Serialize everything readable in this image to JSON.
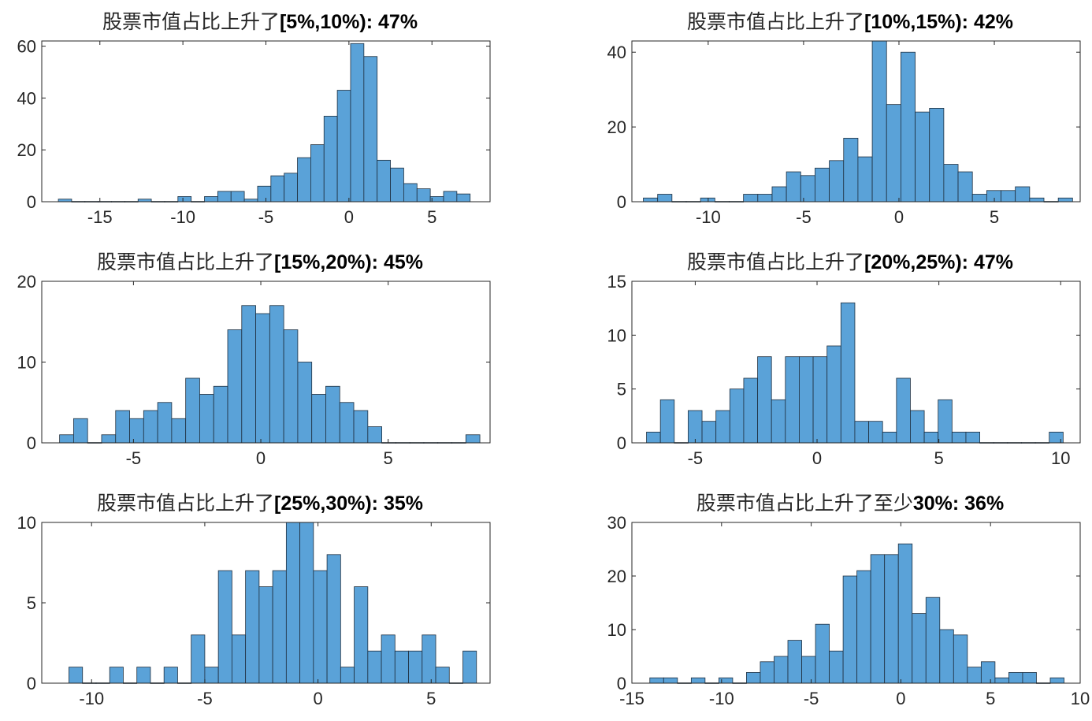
{
  "colors": {
    "bar_fill": "#5aa2d8",
    "bar_edge": "#1f2f3f",
    "axis": "#262626"
  },
  "chart_data": [
    {
      "type": "bar",
      "title": "股票市值占比上升了",
      "title_range": "[5%,10%): 47%",
      "x": [
        -17.25,
        -16.25,
        -15.25,
        -14.25,
        -13.25,
        -12.25,
        -11.25,
        -10.25,
        -9.25,
        -8.25,
        -7.25,
        -6.25,
        -5.25,
        -4.25,
        -3.25,
        -2.25,
        -1.25,
        -0.25,
        0.25,
        1.25,
        2.25,
        3.25,
        4.25,
        5.25,
        6.25,
        7.25
      ],
      "bin_edges_note": "",
      "bins": [
        [
          -17.5,
          -16.7,
          1
        ],
        [
          -16.7,
          -15.9,
          0
        ],
        [
          -15.9,
          -15.1,
          0
        ],
        [
          -15.1,
          -14.3,
          0
        ],
        [
          -14.3,
          -13.5,
          0
        ],
        [
          -13.5,
          -12.7,
          0
        ],
        [
          -12.7,
          -11.9,
          1
        ],
        [
          -11.9,
          -11.1,
          0
        ],
        [
          -11.1,
          -10.3,
          0
        ],
        [
          -10.3,
          -9.5,
          2
        ],
        [
          -9.5,
          -8.7,
          0
        ],
        [
          -8.7,
          -7.9,
          2
        ],
        [
          -7.9,
          -7.1,
          4
        ],
        [
          -7.1,
          -6.3,
          4
        ],
        [
          -6.3,
          -5.5,
          1
        ],
        [
          -5.5,
          -4.7,
          6
        ],
        [
          -4.7,
          -3.9,
          10
        ],
        [
          -3.9,
          -3.1,
          11
        ],
        [
          -3.1,
          -2.3,
          17
        ],
        [
          -2.3,
          -1.5,
          22
        ],
        [
          -1.5,
          -0.7,
          33
        ],
        [
          -0.7,
          0.1,
          43
        ],
        [
          0.1,
          0.9,
          61
        ],
        [
          0.9,
          1.7,
          56
        ],
        [
          1.7,
          2.5,
          16
        ],
        [
          2.5,
          3.3,
          13
        ],
        [
          3.3,
          4.1,
          7
        ],
        [
          4.1,
          4.9,
          5
        ],
        [
          4.9,
          5.7,
          2
        ],
        [
          5.7,
          6.5,
          4
        ],
        [
          6.5,
          7.3,
          3
        ]
      ],
      "xlim": [
        -18.5,
        8.5
      ],
      "ylim": [
        0,
        62
      ],
      "xticks": [
        -15,
        -10,
        -5,
        0,
        5
      ],
      "yticks": [
        0,
        20,
        40,
        60
      ],
      "xtick_labels": [
        "-15",
        "-10",
        "-5",
        "0",
        "5"
      ],
      "ytick_labels": [
        "0",
        "20",
        "40",
        "60"
      ],
      "xlabel": "",
      "ylabel": ""
    },
    {
      "type": "bar",
      "title": "股票市值占比上升了",
      "title_range": "[10%,15%): 42%",
      "bins": [
        [
          -13.4,
          -12.65,
          1
        ],
        [
          -12.65,
          -11.9,
          2
        ],
        [
          -11.9,
          -11.15,
          0
        ],
        [
          -11.15,
          -10.4,
          0
        ],
        [
          -10.4,
          -9.65,
          1
        ],
        [
          -9.65,
          -8.9,
          0
        ],
        [
          -8.9,
          -8.15,
          0
        ],
        [
          -8.15,
          -7.4,
          2
        ],
        [
          -7.4,
          -6.65,
          2
        ],
        [
          -6.65,
          -5.9,
          4
        ],
        [
          -5.9,
          -5.15,
          8
        ],
        [
          -5.15,
          -4.4,
          7
        ],
        [
          -4.4,
          -3.65,
          9
        ],
        [
          -3.65,
          -2.9,
          11
        ],
        [
          -2.9,
          -2.15,
          17
        ],
        [
          -2.15,
          -1.4,
          12
        ],
        [
          -1.4,
          -0.65,
          43
        ],
        [
          -0.65,
          0.1,
          26
        ],
        [
          0.1,
          0.85,
          40
        ],
        [
          0.85,
          1.6,
          24
        ],
        [
          1.6,
          2.35,
          25
        ],
        [
          2.35,
          3.1,
          10
        ],
        [
          3.1,
          3.85,
          8
        ],
        [
          3.85,
          4.6,
          2
        ],
        [
          4.6,
          5.35,
          3
        ],
        [
          5.35,
          6.1,
          3
        ],
        [
          6.1,
          6.85,
          4
        ],
        [
          6.85,
          7.6,
          1
        ],
        [
          7.6,
          8.35,
          0
        ],
        [
          8.35,
          9.1,
          1
        ]
      ],
      "xlim": [
        -14.0,
        9.5
      ],
      "ylim": [
        0,
        43
      ],
      "xticks": [
        -10,
        -5,
        0,
        5
      ],
      "yticks": [
        0,
        20,
        40
      ],
      "xtick_labels": [
        "-10",
        "-5",
        "0",
        "5"
      ],
      "ytick_labels": [
        "0",
        "20",
        "40"
      ],
      "xlabel": "",
      "ylabel": ""
    },
    {
      "type": "bar",
      "title": "股票市值占比上升了",
      "title_range": "[15%,20%): 45%",
      "bins": [
        [
          -7.9,
          -7.35,
          1
        ],
        [
          -7.35,
          -6.8,
          3
        ],
        [
          -6.8,
          -6.25,
          0
        ],
        [
          -6.25,
          -5.7,
          1
        ],
        [
          -5.7,
          -5.15,
          4
        ],
        [
          -5.15,
          -4.6,
          3
        ],
        [
          -4.6,
          -4.05,
          4
        ],
        [
          -4.05,
          -3.5,
          5
        ],
        [
          -3.5,
          -2.95,
          3
        ],
        [
          -2.95,
          -2.4,
          8
        ],
        [
          -2.4,
          -1.85,
          6
        ],
        [
          -1.85,
          -1.3,
          7
        ],
        [
          -1.3,
          -0.75,
          14
        ],
        [
          -0.75,
          -0.2,
          17
        ],
        [
          -0.2,
          0.35,
          16
        ],
        [
          0.35,
          0.9,
          17
        ],
        [
          0.9,
          1.45,
          14
        ],
        [
          1.45,
          2.0,
          10
        ],
        [
          2.0,
          2.55,
          6
        ],
        [
          2.55,
          3.1,
          7
        ],
        [
          3.1,
          3.65,
          5
        ],
        [
          3.65,
          4.2,
          4
        ],
        [
          4.2,
          4.75,
          2
        ],
        [
          4.75,
          5.3,
          0
        ],
        [
          5.3,
          5.85,
          0
        ],
        [
          5.85,
          6.4,
          0
        ],
        [
          6.4,
          6.95,
          0
        ],
        [
          6.95,
          7.5,
          0
        ],
        [
          7.5,
          8.05,
          0
        ],
        [
          8.05,
          8.6,
          1
        ]
      ],
      "xlim": [
        -8.6,
        9.0
      ],
      "ylim": [
        0,
        20
      ],
      "xticks": [
        -5,
        0,
        5
      ],
      "yticks": [
        0,
        10,
        20
      ],
      "xtick_labels": [
        "-5",
        "0",
        "5"
      ],
      "ytick_labels": [
        "0",
        "10",
        "20"
      ],
      "xlabel": "",
      "ylabel": ""
    },
    {
      "type": "bar",
      "title": "股票市值占比上升了",
      "title_range": "[20%,25%): 47%",
      "bins": [
        [
          -7.0,
          -6.43,
          1
        ],
        [
          -6.43,
          -5.86,
          4
        ],
        [
          -5.86,
          -5.29,
          0
        ],
        [
          -5.29,
          -4.72,
          3
        ],
        [
          -4.72,
          -4.15,
          2
        ],
        [
          -4.15,
          -3.58,
          3
        ],
        [
          -3.58,
          -3.01,
          5
        ],
        [
          -3.01,
          -2.44,
          6
        ],
        [
          -2.44,
          -1.87,
          8
        ],
        [
          -1.87,
          -1.3,
          4
        ],
        [
          -1.3,
          -0.73,
          8
        ],
        [
          -0.73,
          -0.16,
          8
        ],
        [
          -0.16,
          0.41,
          8
        ],
        [
          0.41,
          0.98,
          9
        ],
        [
          0.98,
          1.55,
          13
        ],
        [
          1.55,
          2.12,
          2
        ],
        [
          2.12,
          2.69,
          2
        ],
        [
          2.69,
          3.26,
          1
        ],
        [
          3.26,
          3.83,
          6
        ],
        [
          3.83,
          4.4,
          3
        ],
        [
          4.4,
          4.97,
          1
        ],
        [
          4.97,
          5.54,
          4
        ],
        [
          5.54,
          6.11,
          1
        ],
        [
          6.11,
          6.68,
          1
        ],
        [
          6.68,
          7.25,
          0
        ],
        [
          7.25,
          7.82,
          0
        ],
        [
          7.82,
          8.39,
          0
        ],
        [
          8.39,
          8.96,
          0
        ],
        [
          8.96,
          9.53,
          0
        ],
        [
          9.53,
          10.1,
          1
        ]
      ],
      "xlim": [
        -7.6,
        10.8
      ],
      "ylim": [
        0,
        15
      ],
      "xticks": [
        -5,
        0,
        5,
        10
      ],
      "yticks": [
        0,
        5,
        10,
        15
      ],
      "xtick_labels": [
        "-5",
        "0",
        "5",
        "10"
      ],
      "ytick_labels": [
        "0",
        "5",
        "10",
        "15"
      ],
      "xlabel": "",
      "ylabel": ""
    },
    {
      "type": "bar",
      "title": "股票市值占比上升了",
      "title_range": "[25%,30%): 35%",
      "bins": [
        [
          -11.0,
          -10.4,
          1
        ],
        [
          -10.4,
          -9.8,
          0
        ],
        [
          -9.8,
          -9.2,
          0
        ],
        [
          -9.2,
          -8.6,
          1
        ],
        [
          -8.6,
          -8.0,
          0
        ],
        [
          -8.0,
          -7.4,
          1
        ],
        [
          -7.4,
          -6.8,
          0
        ],
        [
          -6.8,
          -6.2,
          1
        ],
        [
          -6.2,
          -5.6,
          0
        ],
        [
          -5.6,
          -5.0,
          3
        ],
        [
          -5.0,
          -4.4,
          1
        ],
        [
          -4.4,
          -3.8,
          7
        ],
        [
          -3.8,
          -3.2,
          3
        ],
        [
          -3.2,
          -2.6,
          7
        ],
        [
          -2.6,
          -2.0,
          6
        ],
        [
          -2.0,
          -1.4,
          7
        ],
        [
          -1.4,
          -0.8,
          10
        ],
        [
          -0.8,
          -0.2,
          10
        ],
        [
          -0.2,
          0.4,
          7
        ],
        [
          0.4,
          1.0,
          8
        ],
        [
          1.0,
          1.6,
          1
        ],
        [
          1.6,
          2.2,
          6
        ],
        [
          2.2,
          2.8,
          2
        ],
        [
          2.8,
          3.4,
          3
        ],
        [
          3.4,
          4.0,
          2
        ],
        [
          4.0,
          4.6,
          2
        ],
        [
          4.6,
          5.2,
          3
        ],
        [
          5.2,
          5.8,
          1
        ],
        [
          5.8,
          6.4,
          0
        ],
        [
          6.4,
          7.0,
          2
        ]
      ],
      "xlim": [
        -12.2,
        7.6
      ],
      "ylim": [
        0,
        10
      ],
      "xticks": [
        -10,
        -5,
        0,
        5
      ],
      "yticks": [
        0,
        5,
        10
      ],
      "xtick_labels": [
        "-10",
        "-5",
        "0",
        "5"
      ],
      "ytick_labels": [
        "0",
        "5",
        "10"
      ],
      "xlabel": "",
      "ylabel": ""
    },
    {
      "type": "bar",
      "title": "股票市值占比上升了至少",
      "title_range": "30%: 36%",
      "bins": [
        [
          -14.0,
          -13.23,
          1
        ],
        [
          -13.23,
          -12.46,
          1
        ],
        [
          -12.46,
          -11.69,
          0
        ],
        [
          -11.69,
          -10.92,
          1
        ],
        [
          -10.92,
          -10.15,
          0
        ],
        [
          -10.15,
          -9.38,
          1
        ],
        [
          -9.38,
          -8.61,
          0
        ],
        [
          -8.61,
          -7.84,
          2
        ],
        [
          -7.84,
          -7.07,
          4
        ],
        [
          -7.07,
          -6.3,
          5
        ],
        [
          -6.3,
          -5.53,
          8
        ],
        [
          -5.53,
          -4.76,
          5
        ],
        [
          -4.76,
          -3.99,
          11
        ],
        [
          -3.99,
          -3.22,
          6
        ],
        [
          -3.22,
          -2.45,
          20
        ],
        [
          -2.45,
          -1.68,
          21
        ],
        [
          -1.68,
          -0.91,
          24
        ],
        [
          -0.91,
          -0.14,
          24
        ],
        [
          -0.14,
          0.63,
          26
        ],
        [
          0.63,
          1.4,
          13
        ],
        [
          1.4,
          2.17,
          16
        ],
        [
          2.17,
          2.94,
          10
        ],
        [
          2.94,
          3.71,
          9
        ],
        [
          3.71,
          4.48,
          3
        ],
        [
          4.48,
          5.25,
          4
        ],
        [
          5.25,
          6.02,
          1
        ],
        [
          6.02,
          6.79,
          2
        ],
        [
          6.79,
          7.56,
          2
        ],
        [
          7.56,
          8.33,
          0
        ],
        [
          8.33,
          9.1,
          1
        ]
      ],
      "xlim": [
        -15.0,
        10.0
      ],
      "ylim": [
        0,
        30
      ],
      "xticks": [
        -15,
        -10,
        -5,
        0,
        5,
        10
      ],
      "yticks": [
        0,
        10,
        20,
        30
      ],
      "xtick_labels": [
        "-15",
        "-10",
        "-5",
        "0",
        "5",
        "10"
      ],
      "ytick_labels": [
        "0",
        "10",
        "20",
        "30"
      ],
      "xlabel": "",
      "ylabel": ""
    }
  ]
}
